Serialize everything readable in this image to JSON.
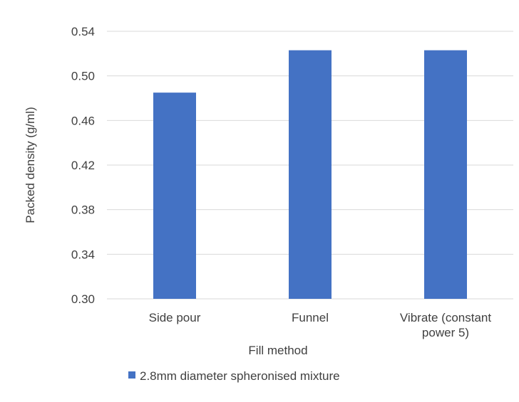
{
  "chart_data": {
    "type": "bar",
    "categories": [
      [
        "Side pour"
      ],
      [
        "Funnel"
      ],
      [
        "Vibrate (constant",
        "power 5)"
      ]
    ],
    "series": [
      {
        "name": "2.8mm diameter spheronised mixture",
        "values": [
          0.485,
          0.523,
          0.523
        ],
        "color": "#4472C4"
      }
    ],
    "xlabel": "Fill method",
    "ylabel": "Packed density (g/ml)",
    "ylim": [
      0.3,
      0.54
    ],
    "yticks": [
      "0.30",
      "0.34",
      "0.38",
      "0.42",
      "0.46",
      "0.50",
      "0.54"
    ],
    "grid": true,
    "legend": "bottom"
  }
}
